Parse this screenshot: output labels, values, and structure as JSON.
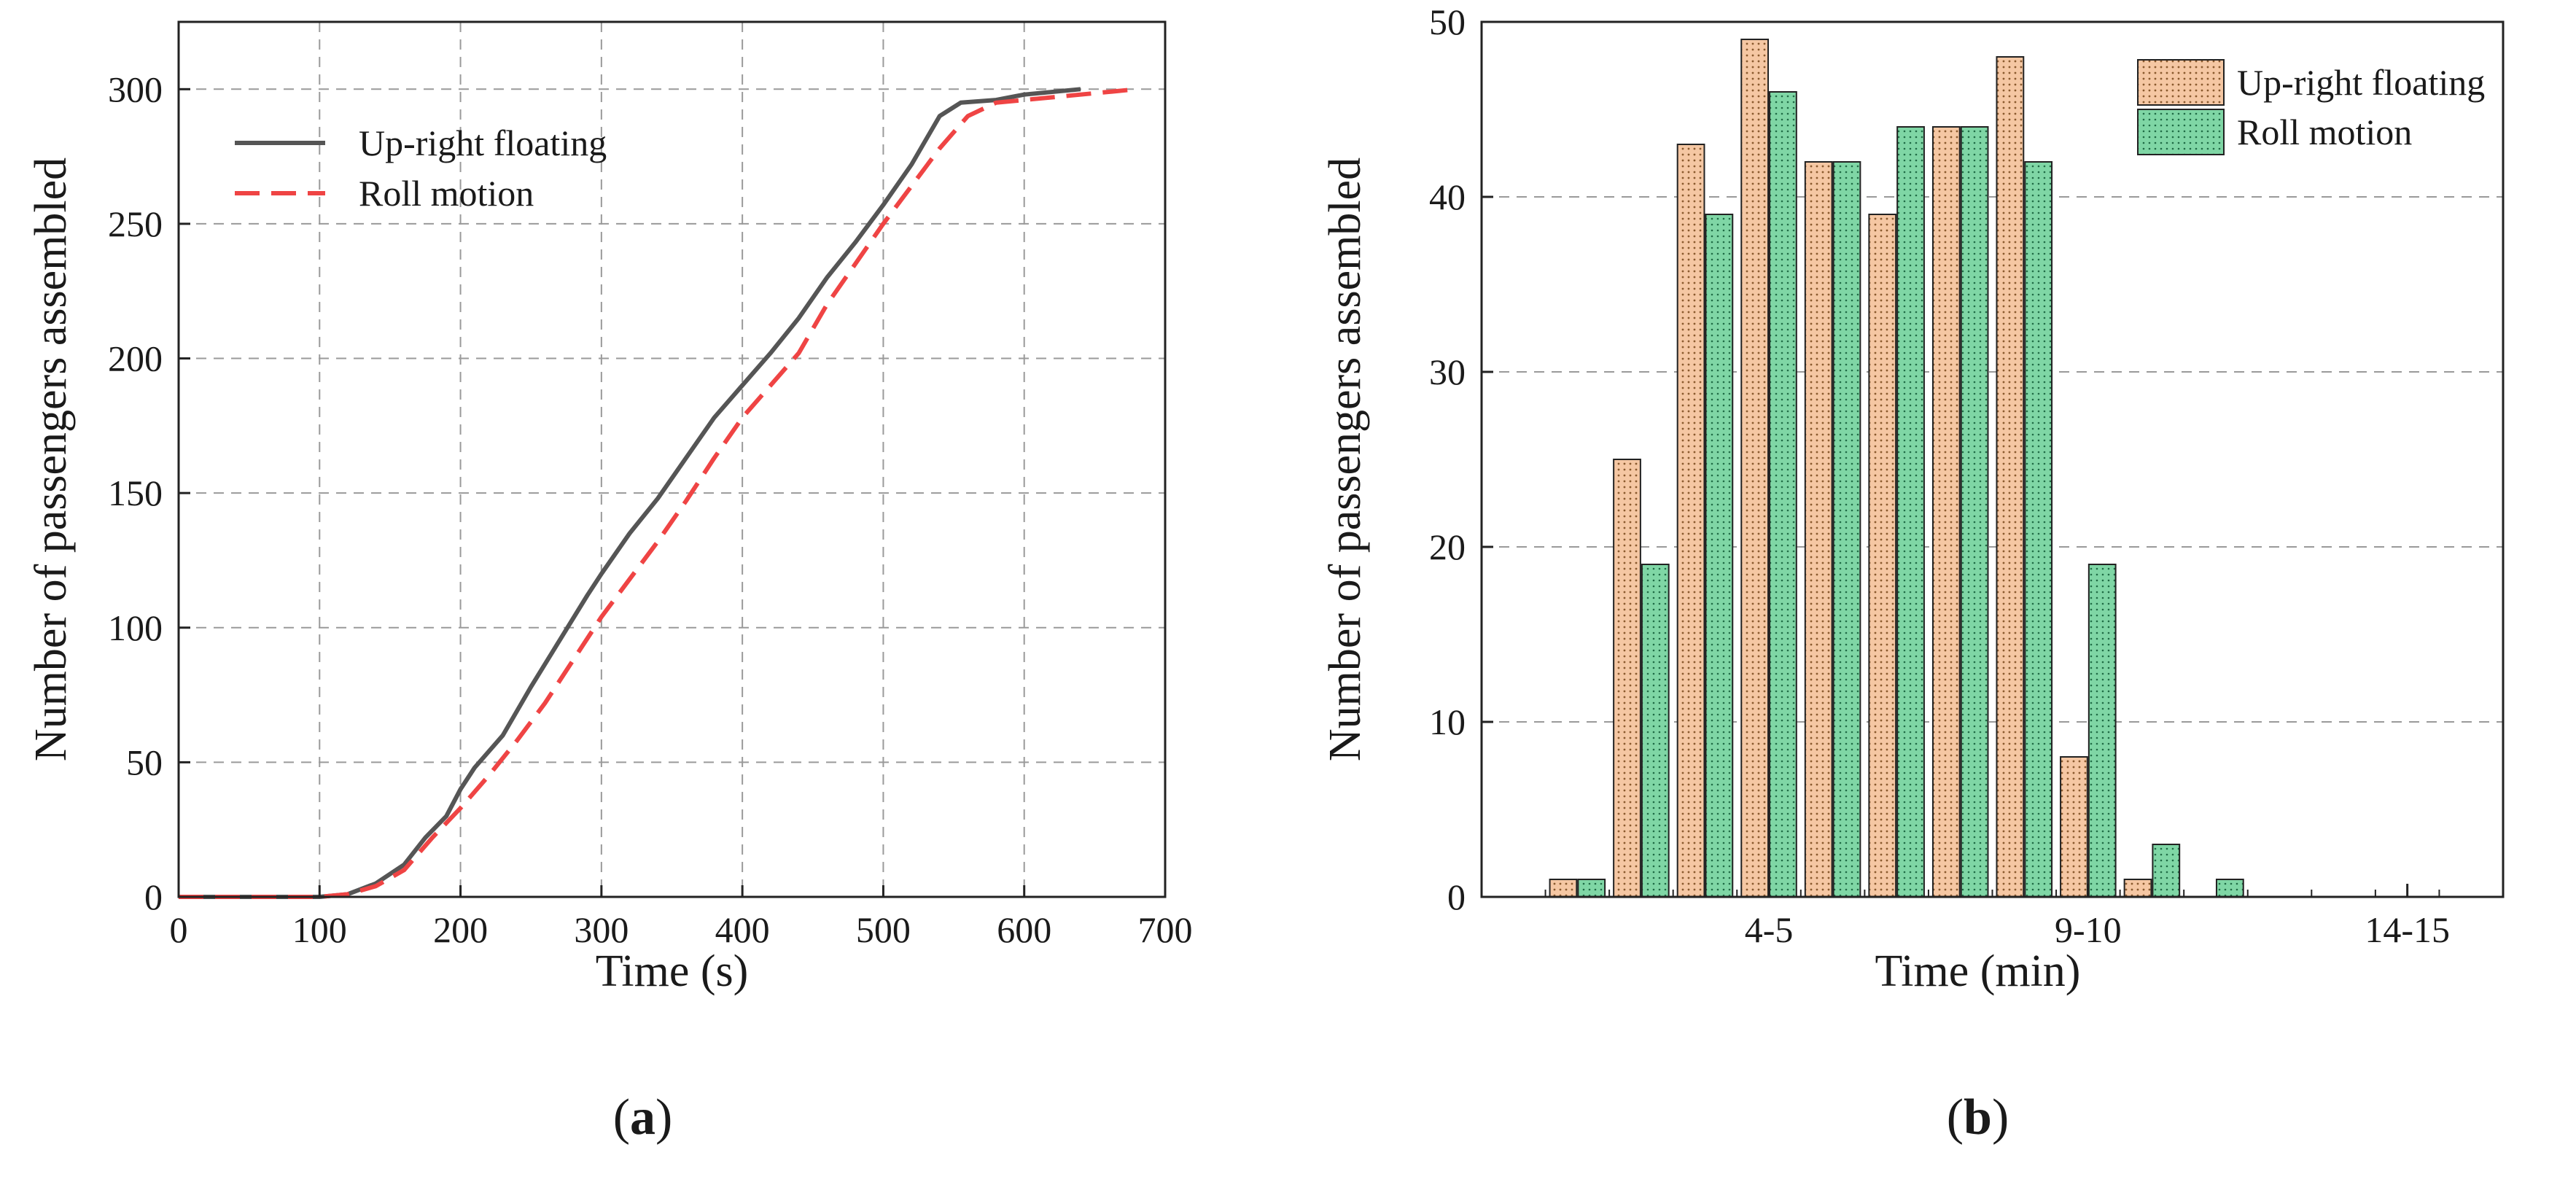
{
  "chart_data": [
    {
      "panel_label": "(a)",
      "panel_letter": "a",
      "type": "line",
      "xlabel": "Time (s)",
      "ylabel": "Number of passengers  assembled",
      "xlim": [
        0,
        700
      ],
      "ylim": [
        0,
        325
      ],
      "xticks": [
        "0",
        "100",
        "200",
        "300",
        "400",
        "500",
        "600",
        "700"
      ],
      "yticks": [
        "0",
        "50",
        "100",
        "150",
        "200",
        "250",
        "300"
      ],
      "grid": true,
      "legend_position": "top-left",
      "series": [
        {
          "name": "Up-right floating",
          "style": "solid",
          "color": "#555555",
          "x": [
            0,
            100,
            120,
            140,
            160,
            175,
            190,
            200,
            210,
            230,
            250,
            270,
            290,
            300,
            320,
            340,
            360,
            380,
            400,
            420,
            440,
            460,
            480,
            500,
            520,
            540,
            555,
            580,
            600,
            640
          ],
          "y": [
            0,
            0,
            1,
            5,
            12,
            22,
            30,
            40,
            48,
            60,
            78,
            95,
            112,
            120,
            135,
            148,
            163,
            178,
            190,
            202,
            215,
            230,
            243,
            257,
            272,
            290,
            295,
            296,
            298,
            300
          ]
        },
        {
          "name": "Roll motion",
          "style": "dashed",
          "color": "#ef4444",
          "x": [
            0,
            100,
            120,
            140,
            160,
            180,
            200,
            220,
            240,
            260,
            280,
            300,
            320,
            340,
            360,
            380,
            400,
            420,
            440,
            460,
            480,
            500,
            520,
            540,
            560,
            580,
            600,
            640,
            680
          ],
          "y": [
            0,
            0,
            1,
            4,
            10,
            22,
            33,
            45,
            58,
            72,
            88,
            104,
            118,
            132,
            147,
            163,
            178,
            190,
            202,
            220,
            235,
            250,
            264,
            278,
            290,
            295,
            296,
            298,
            300
          ]
        }
      ]
    },
    {
      "panel_label": "(b)",
      "panel_letter": "b",
      "type": "bar",
      "xlabel": "Time (min)",
      "ylabel": "Number of passengers  assembled",
      "ylim": [
        0,
        50
      ],
      "yticks": [
        "0",
        "10",
        "20",
        "30",
        "40",
        "50"
      ],
      "x_tick_labels": [
        "4-5",
        "9-10",
        "14-15"
      ],
      "x_tick_positions": [
        4.5,
        9.5,
        14.5
      ],
      "category_width_min": 1,
      "x_range_min": [
        0,
        16
      ],
      "grid": true,
      "legend_position": "top-right",
      "bin_starts": [
        1,
        2,
        3,
        4,
        5,
        6,
        7,
        8,
        9,
        10,
        11
      ],
      "series": [
        {
          "name": "Up-right floating",
          "color": "#f5c7a3",
          "values": [
            1,
            25,
            43,
            49,
            42,
            39,
            44,
            48,
            8,
            1,
            0
          ]
        },
        {
          "name": "Roll motion",
          "color": "#7fd6a5",
          "values": [
            1,
            19,
            39,
            46,
            42,
            44,
            44,
            42,
            19,
            3,
            1
          ]
        }
      ]
    }
  ]
}
